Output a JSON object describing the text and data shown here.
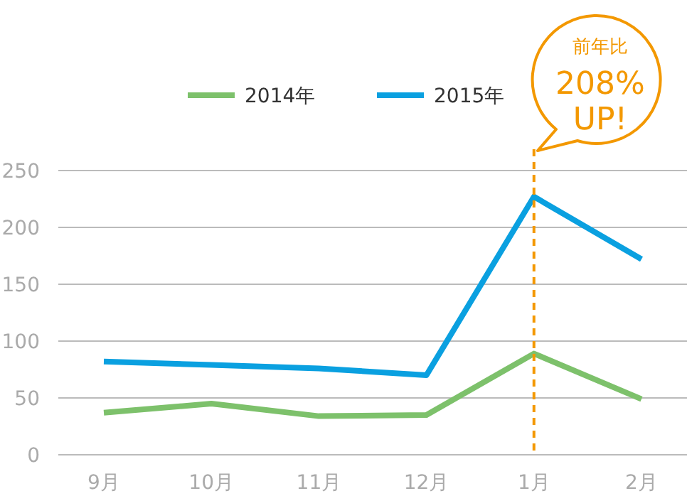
{
  "chart_data": {
    "type": "line",
    "categories": [
      "9月",
      "10月",
      "11月",
      "12月",
      "1月",
      "2月"
    ],
    "series": [
      {
        "name": "2014年",
        "color": "#7dc16b",
        "values": [
          37,
          45,
          34,
          35,
          89,
          49
        ]
      },
      {
        "name": "2015年",
        "color": "#0aa0e0",
        "values": [
          82,
          79,
          76,
          70,
          227,
          172
        ]
      }
    ],
    "ylim": [
      0,
      250
    ],
    "yticks": [
      0,
      50,
      100,
      150,
      200,
      250
    ],
    "grid": "y",
    "legend": "top",
    "ref_lines": [
      {
        "axis": "x",
        "value": "1月",
        "color": "#f39800",
        "line_style": "dashed"
      }
    ],
    "annotations": [
      "前年比",
      "208%",
      "UP!"
    ]
  }
}
